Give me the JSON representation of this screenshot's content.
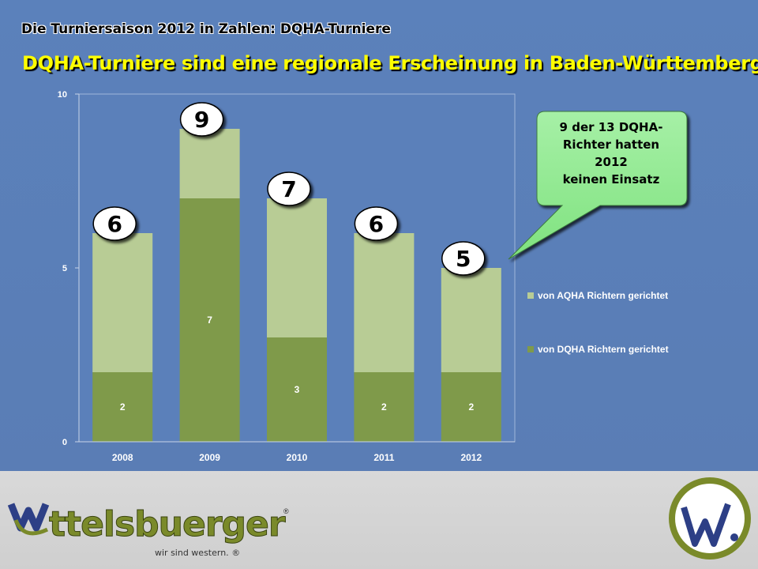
{
  "header": {
    "heading": "Die Turniersaison 2012 in Zahlen: DQHA-Turniere",
    "title": "DQHA-Turniere sind eine regionale Erscheinung in Baden-Württemberg"
  },
  "callout": {
    "lines": [
      "9 der 13 DQHA-",
      "Richter hatten",
      "2012",
      "keinen Einsatz"
    ]
  },
  "chart_data": {
    "type": "bar",
    "stacked": true,
    "categories": [
      "2008",
      "2009",
      "2010",
      "2011",
      "2012"
    ],
    "series": [
      {
        "name": "von DQHA Richtern gerichtet",
        "values": [
          2,
          7,
          3,
          2,
          2
        ],
        "color": "#7f9a4a"
      },
      {
        "name": "von AQHA Richtern gerichtet",
        "values": [
          4,
          2,
          4,
          4,
          3
        ],
        "color": "#b8cc95"
      }
    ],
    "totals": [
      6,
      9,
      7,
      6,
      5
    ],
    "data_labels": [
      "2",
      "7",
      "3",
      "2",
      "2"
    ],
    "ylim": [
      0,
      10
    ],
    "yticks": [
      0,
      5,
      10
    ],
    "legend_position": "right",
    "plot_background": "#5b80ba",
    "grid": false
  },
  "footer": {
    "brand": "ttelsbuerger",
    "tagline": "wir sind western.",
    "registered": "®",
    "badge_text": "w!"
  }
}
